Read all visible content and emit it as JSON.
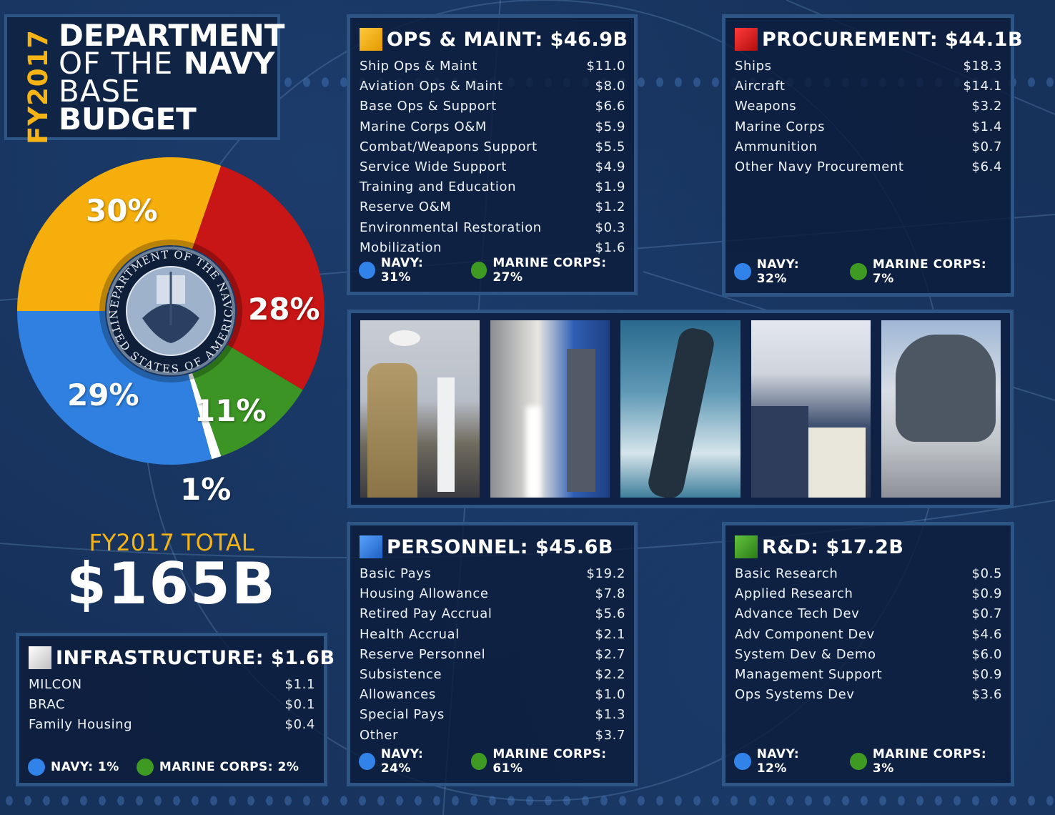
{
  "header": {
    "fiscal_year_vertical": "FY2017",
    "title_line1": "DEPARTMENT",
    "title_line2_thin": "OF THE ",
    "title_line2_bold": "NAVY",
    "title_line3": "BASE",
    "title_line4": "BUDGET"
  },
  "total": {
    "label": "FY2017 TOTAL",
    "value": "$165B"
  },
  "seal": {
    "top_text": "DEPARTMENT OF THE NAVY",
    "bottom_text": "UNITED STATES OF AMERICA"
  },
  "colors": {
    "ops_maint": "#f6ae0c",
    "procurement": "#c81515",
    "personnel": "#2f80e0",
    "rnd": "#3b9424",
    "infrastructure": "#ffffff",
    "navy_dot": "#3183ea",
    "marine_dot": "#3f9a24",
    "accent_yellow": "#f6b316",
    "panel_border": "#2d5686"
  },
  "chart_data": {
    "type": "pie",
    "title": "FY2017 Department of the Navy Base Budget",
    "categories": [
      "Ops & Maint",
      "Procurement",
      "R&D",
      "Infrastructure",
      "Personnel"
    ],
    "values": [
      30,
      28,
      11,
      1,
      29
    ],
    "labels": [
      "30%",
      "28%",
      "11%",
      "1%",
      "29%"
    ],
    "amounts_billion": [
      46.9,
      44.1,
      17.2,
      1.6,
      45.6
    ],
    "colors": [
      "#f6ae0c",
      "#c81515",
      "#3b9424",
      "#ffffff",
      "#2f80e0"
    ],
    "total": "$165B",
    "donut": true
  },
  "panels": {
    "ops": {
      "title": "OPS & MAINT: $46.9B",
      "rows": [
        {
          "label": "Ship Ops & Maint",
          "value": "$11.0"
        },
        {
          "label": "Aviation Ops & Maint",
          "value": "$8.0"
        },
        {
          "label": "Base Ops & Support",
          "value": "$6.6"
        },
        {
          "label": "Marine Corps O&M",
          "value": "$5.9"
        },
        {
          "label": "Combat/Weapons Support",
          "value": "$5.5"
        },
        {
          "label": "Service Wide Support",
          "value": "$4.9"
        },
        {
          "label": "Training and Education",
          "value": "$1.9"
        },
        {
          "label": "Reserve O&M",
          "value": "$1.2"
        },
        {
          "label": "Environmental Restoration",
          "value": "$0.3"
        },
        {
          "label": "Mobilization",
          "value": "$1.6"
        }
      ],
      "navy": "NAVY: 31%",
      "marine": "MARINE CORPS: 27%"
    },
    "procurement": {
      "title": "PROCUREMENT: $44.1B",
      "rows": [
        {
          "label": "Ships",
          "value": "$18.3"
        },
        {
          "label": "Aircraft",
          "value": "$14.1"
        },
        {
          "label": "Weapons",
          "value": "$3.2"
        },
        {
          "label": "Marine Corps",
          "value": "$1.4"
        },
        {
          "label": "Ammunition",
          "value": "$0.7"
        },
        {
          "label": "Other Navy Procurement",
          "value": "$6.4"
        }
      ],
      "navy": "NAVY: 32%",
      "marine": "MARINE CORPS: 7%"
    },
    "personnel": {
      "title": "PERSONNEL: $45.6B",
      "rows": [
        {
          "label": "Basic Pays",
          "value": "$19.2"
        },
        {
          "label": "Housing Allowance",
          "value": "$7.8"
        },
        {
          "label": "Retired Pay Accrual",
          "value": "$5.6"
        },
        {
          "label": "Health Accrual",
          "value": "$2.1"
        },
        {
          "label": "Reserve Personnel",
          "value": "$2.7"
        },
        {
          "label": "Subsistence",
          "value": "$2.2"
        },
        {
          "label": "Allowances",
          "value": "$1.0"
        },
        {
          "label": "Special Pays",
          "value": "$1.3"
        },
        {
          "label": "Other",
          "value": "$3.7"
        }
      ],
      "navy": "NAVY: 24%",
      "marine": "MARINE CORPS: 61%"
    },
    "rnd": {
      "title": "R&D: $17.2B",
      "rows": [
        {
          "label": "Basic Research",
          "value": "$0.5"
        },
        {
          "label": "Applied Research",
          "value": "$0.9"
        },
        {
          "label": "Advance Tech Dev",
          "value": "$0.7"
        },
        {
          "label": "Adv Component Dev",
          "value": "$4.6"
        },
        {
          "label": "System Dev & Demo",
          "value": "$6.0"
        },
        {
          "label": "Management Support",
          "value": "$0.9"
        },
        {
          "label": "Ops Systems Dev",
          "value": "$3.6"
        }
      ],
      "navy": "NAVY: 12%",
      "marine": "MARINE CORPS: 3%"
    },
    "infra": {
      "title": "INFRASTRUCTURE: $1.6B",
      "rows": [
        {
          "label": "MILCON",
          "value": "$1.1"
        },
        {
          "label": "BRAC",
          "value": "$0.1"
        },
        {
          "label": "Family Housing",
          "value": "$0.4"
        }
      ],
      "navy": "NAVY: 1%",
      "marine": "MARINE CORPS: 2%"
    }
  },
  "photos": [
    {
      "name": "marine-and-sailor-photo"
    },
    {
      "name": "missile-launch-photo"
    },
    {
      "name": "submarine-photo"
    },
    {
      "name": "operations-center-photo"
    },
    {
      "name": "f35-jet-photo"
    }
  ]
}
